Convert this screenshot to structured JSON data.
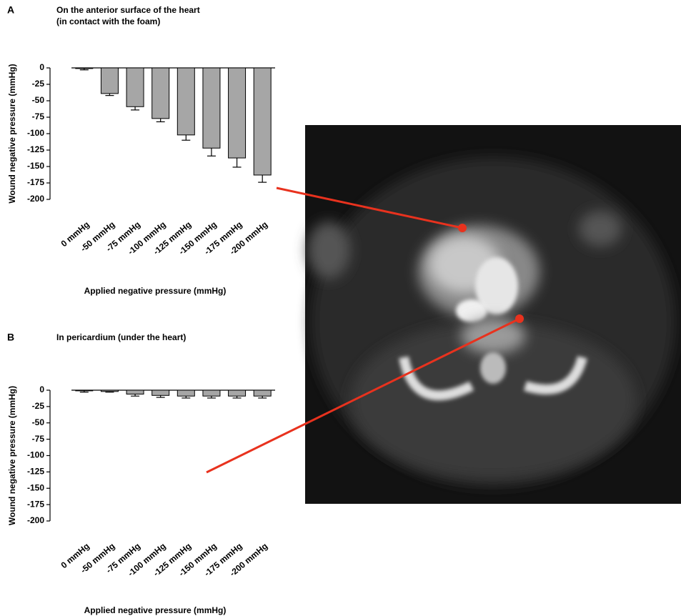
{
  "chart_data": [
    {
      "type": "bar",
      "panel": "A",
      "title": "On the anterior surface of the heart",
      "subtitle": "(in contact with the foam)",
      "x_label": "Applied negative pressure (mmHg)",
      "y_label": "Wound negative pressure (mmHg)",
      "categories": [
        "0 mmHg",
        "-50 mmHg",
        "-75 mmHg",
        "-100 mmHg",
        "-125 mmHg",
        "-150 mmHg",
        "-175 mmHg",
        "-200 mmHg"
      ],
      "values": [
        -1,
        -39,
        -59,
        -77,
        -102,
        -122,
        -137,
        -163
      ],
      "errors": [
        2,
        3,
        5,
        5,
        8,
        12,
        14,
        11
      ],
      "color": "#a6a6a6",
      "ylim": [
        -200,
        0
      ],
      "yticks": [
        0,
        -25,
        -50,
        -75,
        -100,
        -125,
        -150,
        -175,
        -200
      ]
    },
    {
      "type": "bar",
      "panel": "B",
      "title": "In pericardium (under the heart)",
      "x_label": "Applied negative pressure (mmHg)",
      "y_label": "Wound negative pressure (mmHg)",
      "categories": [
        "0 mmHg",
        "-50 mmHg",
        "-75 mmHg",
        "-100 mmHg",
        "-125 mmHg",
        "-150 mmHg",
        "-175 mmHg",
        "-200 mmHg"
      ],
      "values": [
        -1,
        -2,
        -6,
        -8,
        -9,
        -9,
        -9,
        -9
      ],
      "errors": [
        2,
        1,
        3,
        3,
        3,
        3,
        3,
        3
      ],
      "color": "#a6a6a6",
      "ylim": [
        -200,
        0
      ],
      "yticks": [
        0,
        -25,
        -50,
        -75,
        -100,
        -125,
        -150,
        -175,
        -200
      ]
    }
  ]
}
